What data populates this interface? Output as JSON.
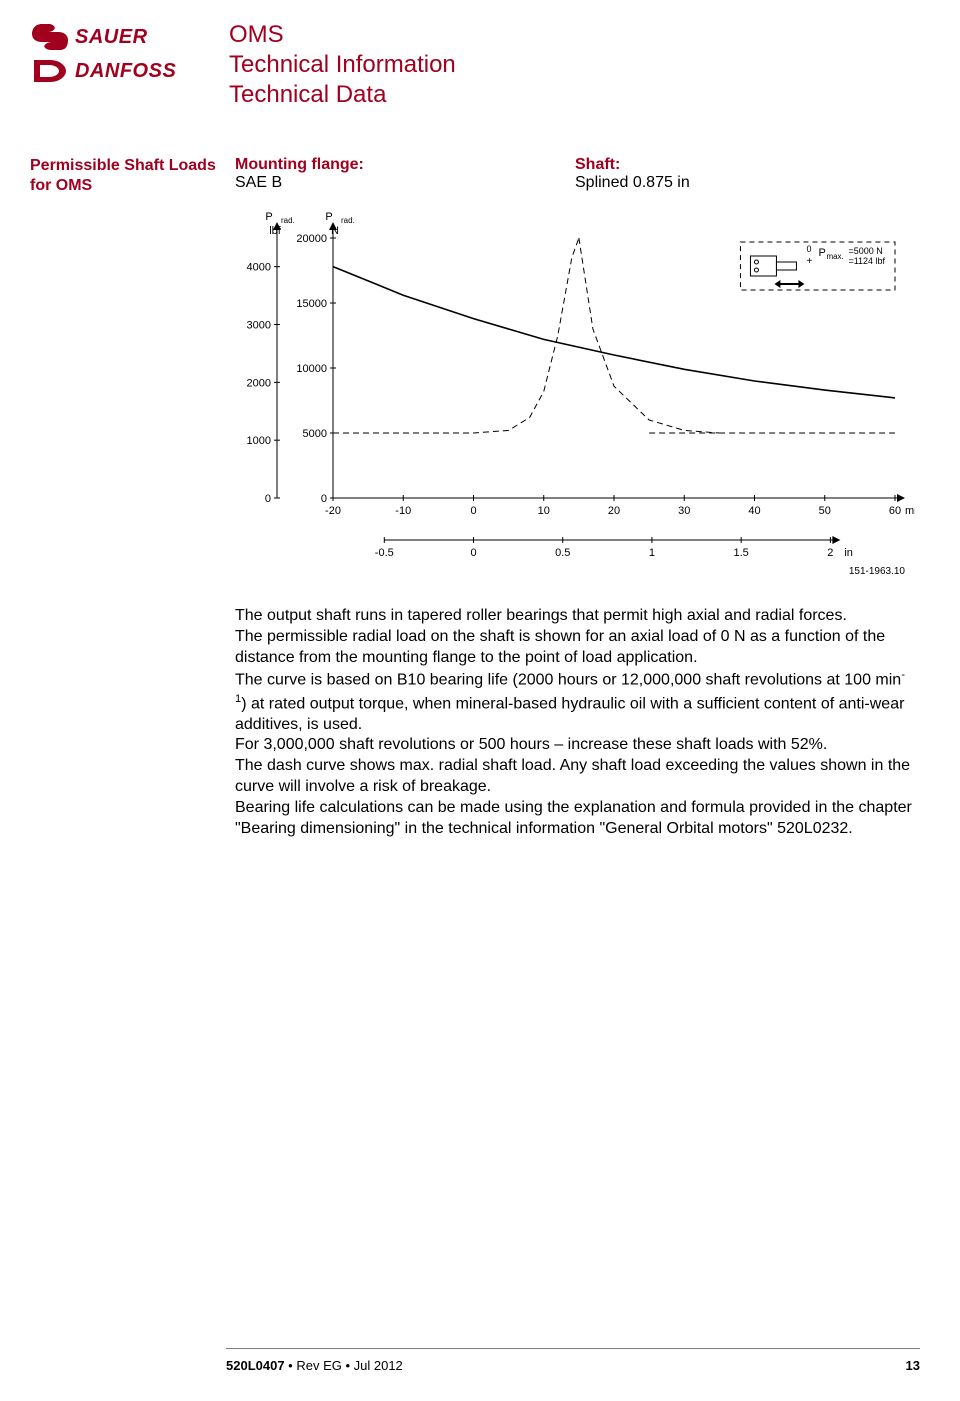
{
  "header": {
    "logo_top": "SAUER",
    "logo_bottom": "DANFOSS",
    "title_line1": "OMS",
    "title_line2": "Technical Information",
    "title_line3": "Technical Data"
  },
  "section_heading_line1": "Permissible Shaft Loads",
  "section_heading_line2": "for OMS",
  "chart_header": {
    "mounting_label": "Mounting flange:",
    "mounting_value": "SAE B",
    "shaft_label": "Shaft:",
    "shaft_value": "Splined 0.875 in"
  },
  "chart": {
    "type": "line",
    "background_color": "#ffffff",
    "axis_color": "#000000",
    "line_color": "#000000",
    "dash_color": "#000000",
    "font_size_axis": 11,
    "y_left": {
      "label_top": "P rad.",
      "unit": "lbf",
      "ticks": [
        0,
        1000,
        2000,
        3000,
        4000
      ]
    },
    "y_right": {
      "label_top": "P rad.",
      "unit": "N",
      "ticks": [
        0,
        5000,
        10000,
        15000,
        20000
      ]
    },
    "x_mm": {
      "unit": "mm",
      "ticks": [
        -20,
        -10,
        0,
        10,
        20,
        30,
        40,
        50,
        60
      ]
    },
    "x_in": {
      "unit": "in",
      "ticks": [
        -0.5,
        0,
        0.5,
        1,
        1.5,
        2
      ]
    },
    "pmax_label": "P max.",
    "pmax_n": "=5000 N",
    "pmax_lbf": "=1124 lbf",
    "zero_marker": "0",
    "plus_marker": "+",
    "figure_ref": "151-1963.10",
    "solid_curve_points_N": [
      [
        -20,
        17800
      ],
      [
        -10,
        15600
      ],
      [
        0,
        13800
      ],
      [
        10,
        12200
      ],
      [
        20,
        11000
      ],
      [
        30,
        9900
      ],
      [
        40,
        9000
      ],
      [
        50,
        8300
      ],
      [
        60,
        7700
      ]
    ],
    "dash_horizontal_value_N": 5000,
    "dash_horizontal_x_range_mm": [
      25,
      60
    ],
    "dash_upper_curve_points_N": [
      [
        -20,
        5000
      ],
      [
        -10,
        5000
      ],
      [
        0,
        5000
      ],
      [
        5,
        5200
      ],
      [
        8,
        6200
      ],
      [
        10,
        8200
      ],
      [
        12,
        12500
      ],
      [
        14,
        18500
      ],
      [
        15,
        20000
      ]
    ],
    "dash_lower_curve_points_N": [
      [
        15,
        20000
      ],
      [
        17,
        13000
      ],
      [
        20,
        8600
      ],
      [
        25,
        6000
      ],
      [
        30,
        5200
      ],
      [
        35,
        5000
      ]
    ]
  },
  "body_text": {
    "p1": "The output shaft runs in tapered roller bearings that permit high axial and radial forces.",
    "p2": "The permissible radial load on the shaft is shown for an axial load of 0 N as a function of the distance from the mounting flange to the point of load application.",
    "p3a": "The curve is based on B10 bearing life (2000 hours or 12,000,000 shaft revolutions at 100 min",
    "p3sup": "-1",
    "p3b": ") at rated output torque, when mineral-based hydraulic oil with a sufficient content of anti-wear additives, is used.",
    "p4": "For 3,000,000 shaft revolutions or 500 hours – increase these shaft loads with 52%.",
    "p5": "The dash curve shows max. radial shaft load. Any shaft load exceeding the values shown in the curve will involve a risk of breakage.",
    "p6": "Bearing life calculations can be made using the explanation and formula provided in the chapter \"Bearing dimensioning\" in the technical information \"General Orbital motors\" 520L0232."
  },
  "footer": {
    "doc": "520L0407",
    "sep": " • ",
    "rev": "Rev EG • Jul 2012",
    "page": "13"
  },
  "colors": {
    "brand": "#a1001e",
    "text": "#000000"
  }
}
